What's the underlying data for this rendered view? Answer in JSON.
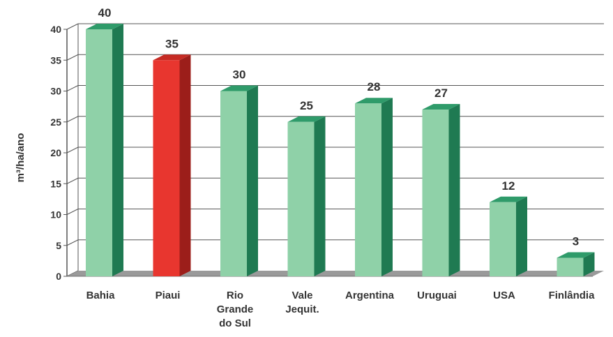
{
  "chart_data": {
    "type": "bar",
    "ylabel": "m³/ha/ano",
    "xlabel": "",
    "ylim": [
      0,
      40
    ],
    "y_ticks": [
      0,
      5,
      10,
      15,
      20,
      25,
      30,
      35,
      40
    ],
    "grid": true,
    "three_d": true,
    "categories": [
      [
        "Bahia"
      ],
      [
        "Piaui"
      ],
      [
        "Rio",
        "Grande",
        "do Sul"
      ],
      [
        "Vale",
        "Jequit."
      ],
      [
        "Argentina"
      ],
      [
        "Uruguai"
      ],
      [
        "USA"
      ],
      [
        "Finlândia"
      ]
    ],
    "values": [
      40,
      35,
      30,
      25,
      28,
      27,
      12,
      3
    ],
    "data_labels": [
      "40",
      "35",
      "30",
      "25",
      "28",
      "27",
      "12",
      "3"
    ],
    "highlight_index": 1,
    "colors": {
      "bar_front": "#8fd1a8",
      "bar_side": "#1f7a52",
      "bar_top": "#2f9b6a",
      "highlight_front": "#e8362f",
      "highlight_side": "#9c1e1a",
      "highlight_top": "#c62b24",
      "floor": "#9a9a9a",
      "grid": "#555555",
      "text": "#333333"
    }
  }
}
